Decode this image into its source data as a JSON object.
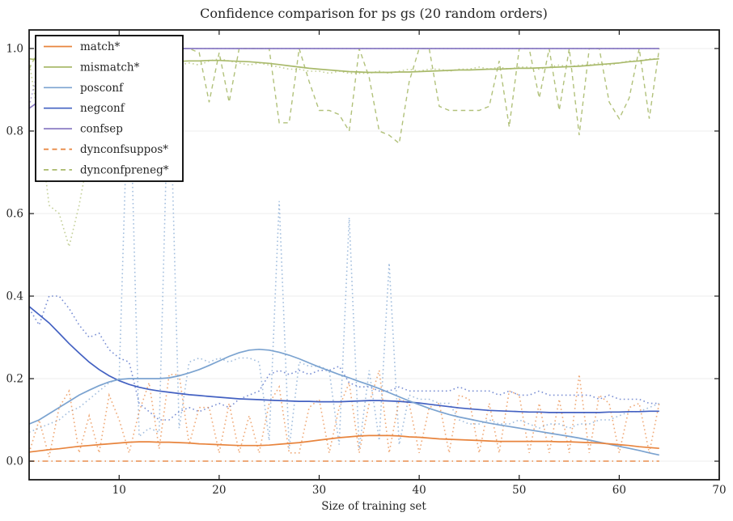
{
  "page": {
    "title": "Confidence comparison for ps gs (20 random orders)"
  },
  "palette": {
    "orange": "#e8843d",
    "olive": "#a9ba6b",
    "lightblue": "#7ba3d0",
    "blue": "#4361c2",
    "purple": "#8b7cc4",
    "spine": "#1a1a1a",
    "grid": "#ececec",
    "text": "#262626"
  },
  "chart_data": {
    "type": "line",
    "title": "Confidence comparison for ps gs (20 random orders)",
    "xlabel": "Size of training set",
    "ylabel": "",
    "xlim": [
      1,
      70
    ],
    "ylim": [
      -0.045,
      1.045
    ],
    "xticks": [
      10,
      20,
      30,
      40,
      50,
      60,
      70
    ],
    "yticks": [
      0.0,
      0.2,
      0.4,
      0.6,
      0.8,
      1.0
    ],
    "grid": "horizontal",
    "legend_position": "upper-left",
    "x_start": 1,
    "x_step": 1,
    "legend": [
      {
        "label": "match*",
        "color": "orange",
        "style": "solid"
      },
      {
        "label": "mismatch*",
        "color": "olive",
        "style": "solid"
      },
      {
        "label": "posconf",
        "color": "lightblue",
        "style": "solid"
      },
      {
        "label": "negconf",
        "color": "blue",
        "style": "solid"
      },
      {
        "label": "confsep",
        "color": "purple",
        "style": "solid"
      },
      {
        "label": "dynconfsuppos*",
        "color": "orange",
        "style": "dashed"
      },
      {
        "label": "dynconfpreneg*",
        "color": "olive",
        "style": "dashed"
      }
    ],
    "series": [
      {
        "name": "mismatch-raw",
        "color": "olive",
        "style": "dotted",
        "values": [
          0.97,
          0.82,
          0.62,
          0.6,
          0.52,
          0.62,
          0.75,
          0.85,
          0.92,
          0.93,
          0.96,
          0.95,
          0.96,
          0.96,
          0.95,
          0.96,
          0.965,
          0.96,
          0.97,
          0.975,
          0.97,
          0.965,
          0.96,
          0.965,
          0.96,
          0.955,
          0.95,
          0.95,
          0.945,
          0.945,
          0.94,
          0.945,
          0.94,
          0.94,
          0.94,
          0.945,
          0.94,
          0.945,
          0.95,
          0.945,
          0.95,
          0.95,
          0.945,
          0.95,
          0.95,
          0.955,
          0.95,
          0.955,
          0.95,
          0.955,
          0.955,
          0.95,
          0.955,
          0.96,
          0.955,
          0.96,
          0.96,
          0.965,
          0.96,
          0.965,
          0.97,
          0.97,
          0.975,
          0.975
        ]
      },
      {
        "name": "confsep-raw",
        "color": "purple",
        "style": "dotted",
        "values": [
          0.86,
          0.96,
          0.99,
          1.0,
          1.0,
          1.0,
          1.0,
          1.0,
          1.0,
          1.0,
          1.0,
          1.0,
          1.0,
          1.0,
          1.0,
          1.0,
          1.0,
          1.0,
          1.0,
          1.0,
          1.0,
          1.0,
          1.0,
          1.0,
          1.0,
          1.0,
          1.0,
          1.0,
          1.0,
          1.0,
          1.0,
          1.0,
          1.0,
          1.0,
          1.0,
          1.0,
          1.0,
          1.0,
          1.0,
          1.0,
          1.0,
          1.0,
          1.0,
          1.0,
          1.0,
          1.0,
          1.0,
          1.0,
          1.0,
          1.0,
          1.0,
          1.0,
          1.0,
          1.0,
          1.0,
          1.0,
          1.0,
          1.0,
          1.0,
          1.0,
          1.0,
          1.0,
          1.0,
          1.0
        ]
      },
      {
        "name": "negconf-raw",
        "color": "blue",
        "style": "dotted",
        "values": [
          0.37,
          0.33,
          0.4,
          0.4,
          0.37,
          0.33,
          0.3,
          0.31,
          0.27,
          0.25,
          0.24,
          0.14,
          0.12,
          0.1,
          0.1,
          0.12,
          0.13,
          0.12,
          0.13,
          0.14,
          0.13,
          0.15,
          0.16,
          0.17,
          0.21,
          0.22,
          0.21,
          0.22,
          0.21,
          0.22,
          0.22,
          0.23,
          0.19,
          0.18,
          0.18,
          0.17,
          0.17,
          0.18,
          0.17,
          0.17,
          0.17,
          0.17,
          0.17,
          0.18,
          0.17,
          0.17,
          0.17,
          0.16,
          0.17,
          0.16,
          0.16,
          0.17,
          0.16,
          0.16,
          0.16,
          0.16,
          0.16,
          0.15,
          0.16,
          0.15,
          0.15,
          0.15,
          0.14,
          0.14
        ]
      },
      {
        "name": "posconf-raw",
        "color": "lightblue",
        "style": "dotted",
        "values": [
          0.07,
          0.08,
          0.09,
          0.1,
          0.12,
          0.13,
          0.15,
          0.17,
          0.19,
          0.2,
          0.99,
          0.06,
          0.08,
          0.07,
          0.99,
          0.08,
          0.24,
          0.25,
          0.24,
          0.25,
          0.24,
          0.25,
          0.25,
          0.24,
          0.05,
          0.63,
          0.03,
          0.24,
          0.23,
          0.23,
          0.22,
          0.04,
          0.59,
          0.03,
          0.22,
          0.05,
          0.48,
          0.04,
          0.16,
          0.15,
          0.15,
          0.14,
          0.14,
          0.1,
          0.09,
          0.09,
          0.1,
          0.09,
          0.09,
          0.1,
          0.09,
          0.08,
          0.09,
          0.09,
          0.08,
          0.09,
          0.09,
          0.1,
          0.1,
          0.11,
          0.12,
          0.12,
          0.13,
          0.14
        ]
      },
      {
        "name": "match-raw",
        "color": "orange",
        "style": "dotted",
        "values": [
          0.02,
          0.1,
          0.01,
          0.13,
          0.17,
          0.02,
          0.11,
          0.02,
          0.16,
          0.1,
          0.02,
          0.12,
          0.19,
          0.03,
          0.21,
          0.21,
          0.04,
          0.13,
          0.13,
          0.02,
          0.14,
          0.02,
          0.11,
          0.02,
          0.14,
          0.18,
          0.02,
          0.02,
          0.13,
          0.15,
          0.02,
          0.13,
          0.19,
          0.02,
          0.14,
          0.22,
          0.02,
          0.15,
          0.14,
          0.02,
          0.13,
          0.14,
          0.02,
          0.16,
          0.15,
          0.02,
          0.14,
          0.02,
          0.17,
          0.16,
          0.02,
          0.14,
          0.02,
          0.15,
          0.02,
          0.21,
          0.02,
          0.16,
          0.14,
          0.02,
          0.13,
          0.14,
          0.02,
          0.14
        ]
      },
      {
        "name": "dynconfsuppos",
        "color": "orange",
        "style": "dashdot",
        "values": [
          0,
          0,
          0,
          0,
          0,
          0,
          0,
          0,
          0,
          0,
          0,
          0,
          0,
          0,
          0,
          0,
          0,
          0,
          0,
          0,
          0,
          0,
          0,
          0,
          0,
          0,
          0,
          0,
          0,
          0,
          0,
          0,
          0,
          0,
          0,
          0,
          0,
          0,
          0,
          0,
          0,
          0,
          0,
          0,
          0,
          0,
          0,
          0,
          0,
          0,
          0,
          0,
          0,
          0,
          0,
          0,
          0,
          0,
          0,
          0,
          0,
          0,
          0,
          0
        ]
      },
      {
        "name": "dynconfpreneg",
        "color": "olive",
        "style": "dashed",
        "values": [
          0.95,
          1.0,
          0.98,
          1.0,
          1.0,
          0.97,
          1.0,
          0.99,
          1.0,
          0.98,
          1.0,
          1.0,
          0.99,
          1.0,
          1.0,
          1.0,
          1.0,
          0.99,
          0.87,
          0.99,
          0.87,
          1.0,
          1.0,
          1.0,
          1.0,
          0.82,
          0.82,
          1.0,
          0.92,
          0.85,
          0.85,
          0.84,
          0.8,
          1.0,
          0.93,
          0.8,
          0.79,
          0.77,
          0.92,
          1.0,
          1.0,
          0.86,
          0.85,
          0.85,
          0.85,
          0.85,
          0.86,
          0.97,
          0.81,
          1.0,
          1.0,
          0.88,
          1.0,
          0.85,
          1.0,
          0.79,
          1.0,
          1.0,
          0.87,
          0.83,
          0.88,
          1.0,
          0.83,
          1.0
        ]
      },
      {
        "name": "mismatch",
        "color": "olive",
        "style": "solid",
        "values": [
          0.975,
          0.972,
          0.969,
          0.966,
          0.964,
          0.962,
          0.961,
          0.961,
          0.962,
          0.963,
          0.964,
          0.965,
          0.966,
          0.967,
          0.968,
          0.969,
          0.97,
          0.97,
          0.971,
          0.971,
          0.97,
          0.969,
          0.968,
          0.966,
          0.964,
          0.961,
          0.958,
          0.955,
          0.952,
          0.95,
          0.948,
          0.946,
          0.944,
          0.943,
          0.942,
          0.942,
          0.942,
          0.943,
          0.943,
          0.944,
          0.945,
          0.946,
          0.947,
          0.948,
          0.948,
          0.949,
          0.95,
          0.95,
          0.951,
          0.952,
          0.952,
          0.953,
          0.954,
          0.955,
          0.956,
          0.957,
          0.959,
          0.961,
          0.963,
          0.965,
          0.968,
          0.97,
          0.973,
          0.975
        ]
      },
      {
        "name": "confsep",
        "color": "purple",
        "style": "solid",
        "values": [
          0.855,
          0.872,
          0.89,
          0.91,
          0.928,
          0.944,
          0.958,
          0.969,
          0.978,
          0.985,
          0.99,
          0.994,
          0.997,
          0.999,
          1.0,
          1.0,
          1.0,
          1.0,
          1.0,
          1.0,
          1.0,
          1.0,
          1.0,
          1.0,
          1.0,
          1.0,
          1.0,
          1.0,
          1.0,
          1.0,
          1.0,
          1.0,
          1.0,
          1.0,
          1.0,
          1.0,
          1.0,
          1.0,
          1.0,
          1.0,
          1.0,
          1.0,
          1.0,
          1.0,
          1.0,
          1.0,
          1.0,
          1.0,
          1.0,
          1.0,
          1.0,
          1.0,
          1.0,
          1.0,
          1.0,
          1.0,
          1.0,
          1.0,
          1.0,
          1.0,
          1.0,
          1.0,
          1.0,
          1.0
        ]
      },
      {
        "name": "negconf",
        "color": "blue",
        "style": "solid",
        "values": [
          0.375,
          0.355,
          0.335,
          0.31,
          0.285,
          0.262,
          0.24,
          0.222,
          0.207,
          0.195,
          0.186,
          0.179,
          0.174,
          0.17,
          0.167,
          0.164,
          0.161,
          0.159,
          0.157,
          0.155,
          0.153,
          0.151,
          0.15,
          0.149,
          0.148,
          0.147,
          0.146,
          0.145,
          0.145,
          0.144,
          0.144,
          0.144,
          0.145,
          0.146,
          0.147,
          0.147,
          0.146,
          0.145,
          0.143,
          0.141,
          0.138,
          0.135,
          0.132,
          0.129,
          0.127,
          0.125,
          0.123,
          0.122,
          0.121,
          0.12,
          0.119,
          0.119,
          0.118,
          0.118,
          0.118,
          0.118,
          0.118,
          0.118,
          0.119,
          0.119,
          0.12,
          0.12,
          0.121,
          0.121
        ]
      },
      {
        "name": "posconf",
        "color": "lightblue",
        "style": "solid",
        "values": [
          0.09,
          0.1,
          0.115,
          0.13,
          0.145,
          0.16,
          0.172,
          0.183,
          0.192,
          0.198,
          0.2,
          0.2,
          0.2,
          0.2,
          0.202,
          0.207,
          0.214,
          0.222,
          0.232,
          0.243,
          0.254,
          0.263,
          0.269,
          0.271,
          0.269,
          0.264,
          0.257,
          0.248,
          0.238,
          0.228,
          0.219,
          0.21,
          0.202,
          0.193,
          0.185,
          0.176,
          0.166,
          0.156,
          0.146,
          0.137,
          0.128,
          0.12,
          0.113,
          0.107,
          0.102,
          0.097,
          0.092,
          0.088,
          0.084,
          0.08,
          0.076,
          0.072,
          0.068,
          0.064,
          0.06,
          0.056,
          0.051,
          0.046,
          0.041,
          0.036,
          0.031,
          0.026,
          0.02,
          0.015
        ]
      },
      {
        "name": "match",
        "color": "orange",
        "style": "solid",
        "values": [
          0.022,
          0.025,
          0.028,
          0.03,
          0.033,
          0.036,
          0.038,
          0.04,
          0.042,
          0.044,
          0.046,
          0.047,
          0.047,
          0.046,
          0.046,
          0.045,
          0.044,
          0.042,
          0.041,
          0.04,
          0.039,
          0.038,
          0.038,
          0.038,
          0.039,
          0.041,
          0.043,
          0.045,
          0.048,
          0.051,
          0.054,
          0.057,
          0.059,
          0.061,
          0.062,
          0.062,
          0.062,
          0.061,
          0.059,
          0.058,
          0.056,
          0.054,
          0.053,
          0.052,
          0.051,
          0.05,
          0.049,
          0.048,
          0.048,
          0.048,
          0.048,
          0.048,
          0.048,
          0.047,
          0.047,
          0.046,
          0.045,
          0.044,
          0.042,
          0.04,
          0.038,
          0.035,
          0.033,
          0.031
        ]
      }
    ]
  }
}
